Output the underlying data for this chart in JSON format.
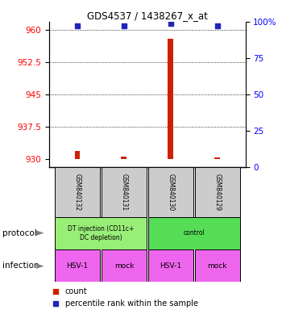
{
  "title": "GDS4537 / 1438267_x_at",
  "samples": [
    "GSM840132",
    "GSM840131",
    "GSM840130",
    "GSM840129"
  ],
  "count_values": [
    931.8,
    930.6,
    958.0,
    930.4
  ],
  "percentile_values": [
    97,
    97,
    99,
    97
  ],
  "ylim_left": [
    928,
    962
  ],
  "ylim_right": [
    0,
    100
  ],
  "yticks_left": [
    930,
    937.5,
    945,
    952.5,
    960
  ],
  "yticks_right": [
    0,
    25,
    50,
    75,
    100
  ],
  "ytick_labels_right": [
    "0",
    "25",
    "50",
    "75",
    "100%"
  ],
  "infection_labels": [
    "HSV-1",
    "mock",
    "HSV-1",
    "mock"
  ],
  "infection_color": "#EE66EE",
  "bar_color": "#CC2200",
  "dot_color": "#2222BB",
  "background_color": "#FFFFFF",
  "sample_box_color": "#CCCCCC",
  "protocol_left_color": "#99EE77",
  "protocol_right_color": "#55DD55",
  "protocol_left_label": "DT injection (CD11c+\nDC depletion)",
  "protocol_right_label": "control"
}
